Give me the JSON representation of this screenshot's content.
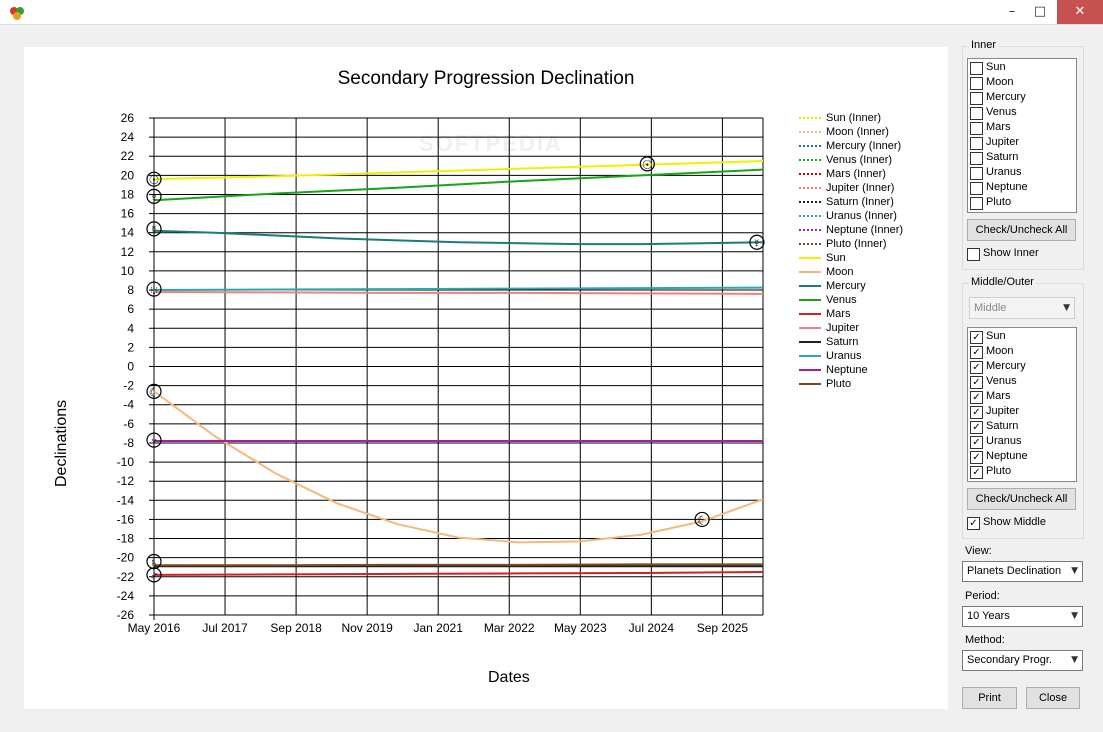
{
  "window": {
    "title": "",
    "minimize": "–",
    "maximize": "□",
    "close": "✕"
  },
  "watermark": "SOFTPEDIA",
  "chart_data": {
    "type": "line",
    "title": "Secondary Progression Declination",
    "xlabel": "Dates",
    "ylabel": "Declinations",
    "ylim": [
      -26,
      26
    ],
    "yticks": [
      "26",
      "24",
      "22",
      "20",
      "18",
      "16",
      "14",
      "12",
      "10",
      "8",
      "6",
      "4",
      "2",
      "0",
      "-2",
      "-4",
      "-6",
      "-8",
      "-10",
      "-12",
      "-14",
      "-16",
      "-18",
      "-20",
      "-22",
      "-24",
      "-26"
    ],
    "xticks": [
      "May 2016",
      "Jul 2017",
      "Sep 2018",
      "Nov 2019",
      "Jan 2021",
      "Mar 2022",
      "May 2023",
      "Jul 2024",
      "Sep 2025"
    ],
    "xrange_years": [
      2016.4,
      2026.4
    ],
    "grid": true,
    "legend_position": "right",
    "series": [
      {
        "name": "Sun (Inner)",
        "color": "#e6e600",
        "dash": true,
        "x": [],
        "y": []
      },
      {
        "name": "Moon (Inner)",
        "color": "#f4b97a",
        "dash": true,
        "x": [],
        "y": []
      },
      {
        "name": "Mercury (Inner)",
        "color": "#1b7a7a",
        "dash": true,
        "x": [],
        "y": []
      },
      {
        "name": "Venus (Inner)",
        "color": "#1aa31a",
        "dash": true,
        "x": [],
        "y": []
      },
      {
        "name": "Mars (Inner)",
        "color": "#c00000",
        "dash": true,
        "x": [],
        "y": []
      },
      {
        "name": "Jupiter (Inner)",
        "color": "#f08080",
        "dash": true,
        "x": [],
        "y": []
      },
      {
        "name": "Saturn (Inner)",
        "color": "#202020",
        "dash": true,
        "x": [],
        "y": []
      },
      {
        "name": "Uranus (Inner)",
        "color": "#2aa8b0",
        "dash": true,
        "x": [],
        "y": []
      },
      {
        "name": "Neptune (Inner)",
        "color": "#a020a0",
        "dash": true,
        "x": [],
        "y": []
      },
      {
        "name": "Pluto (Inner)",
        "color": "#7a4a20",
        "dash": true,
        "x": [],
        "y": []
      },
      {
        "name": "Sun",
        "color": "#f0f000",
        "dash": false,
        "x": [
          2016.4,
          2018.4,
          2020.4,
          2022.4,
          2024.4,
          2026.4
        ],
        "y": [
          19.6,
          19.9,
          20.3,
          20.7,
          21.1,
          21.5
        ]
      },
      {
        "name": "Moon",
        "color": "#f4b97a",
        "dash": false,
        "x": [
          2016.4,
          2017.4,
          2018.4,
          2019.4,
          2020.4,
          2021.4,
          2022.4,
          2023.4,
          2024.4,
          2025.4,
          2026.4
        ],
        "y": [
          -2.6,
          -7.3,
          -11.2,
          -14.3,
          -16.5,
          -17.9,
          -18.4,
          -18.3,
          -17.6,
          -16.2,
          -13.9
        ]
      },
      {
        "name": "Mercury",
        "color": "#1b7a7a",
        "dash": false,
        "x": [
          2016.4,
          2017.4,
          2018.4,
          2019.4,
          2020.4,
          2021.4,
          2022.4,
          2023.4,
          2024.4,
          2025.4,
          2026.4
        ],
        "y": [
          14.2,
          14.0,
          13.7,
          13.4,
          13.2,
          13.0,
          12.9,
          12.8,
          12.8,
          12.9,
          13.0
        ]
      },
      {
        "name": "Venus",
        "color": "#1aa31a",
        "dash": false,
        "x": [
          2016.4,
          2018.4,
          2020.4,
          2022.4,
          2024.4,
          2026.4
        ],
        "y": [
          17.4,
          18.1,
          18.7,
          19.4,
          20.0,
          20.6
        ]
      },
      {
        "name": "Mars",
        "color": "#d42020",
        "dash": false,
        "x": [
          2016.4,
          2018.4,
          2020.4,
          2022.4,
          2024.4,
          2026.4
        ],
        "y": [
          -21.8,
          -21.75,
          -21.7,
          -21.65,
          -21.6,
          -21.5
        ]
      },
      {
        "name": "Jupiter",
        "color": "#f08080",
        "dash": false,
        "x": [
          2016.4,
          2018.4,
          2020.4,
          2022.4,
          2024.4,
          2026.4
        ],
        "y": [
          7.8,
          7.75,
          7.7,
          7.7,
          7.65,
          7.6
        ]
      },
      {
        "name": "Saturn",
        "color": "#202020",
        "dash": false,
        "x": [
          2016.4,
          2018.4,
          2020.4,
          2022.4,
          2024.4,
          2026.4
        ],
        "y": [
          -20.9,
          -20.9,
          -20.9,
          -20.9,
          -20.9,
          -20.9
        ]
      },
      {
        "name": "Uranus",
        "color": "#2aa8b0",
        "dash": false,
        "x": [
          2016.4,
          2018.4,
          2020.4,
          2022.4,
          2024.4,
          2026.4
        ],
        "y": [
          8.0,
          8.05,
          8.1,
          8.15,
          8.2,
          8.25
        ]
      },
      {
        "name": "Neptune",
        "color": "#a020a0",
        "dash": false,
        "x": [
          2016.4,
          2018.4,
          2020.4,
          2022.4,
          2024.4,
          2026.4
        ],
        "y": [
          -7.8,
          -7.8,
          -7.8,
          -7.8,
          -7.8,
          -7.8
        ]
      },
      {
        "name": "Pluto",
        "color": "#7a4a20",
        "dash": false,
        "x": [
          2016.4,
          2018.4,
          2020.4,
          2022.4,
          2024.4,
          2026.4
        ],
        "y": [
          -20.8,
          -20.8,
          -20.75,
          -20.75,
          -20.7,
          -20.7
        ]
      }
    ],
    "markers": [
      {
        "symbol": "☉",
        "name": "sun-marker",
        "x": 2016.4,
        "y": 19.6
      },
      {
        "symbol": "☉",
        "name": "sun-marker-2",
        "x": 2024.5,
        "y": 21.2
      },
      {
        "symbol": "♀",
        "name": "venus-marker",
        "x": 2016.4,
        "y": 17.8
      },
      {
        "symbol": "☿",
        "name": "mercury-marker",
        "x": 2016.4,
        "y": 14.4
      },
      {
        "symbol": "☿",
        "name": "mercury-marker-2",
        "x": 2026.3,
        "y": 13.0
      },
      {
        "symbol": "♅",
        "name": "uranus-marker",
        "x": 2016.4,
        "y": 8.1
      },
      {
        "symbol": "☾",
        "name": "moon-marker",
        "x": 2016.4,
        "y": -2.6
      },
      {
        "symbol": "☾",
        "name": "moon-marker-2",
        "x": 2025.4,
        "y": -16.0
      },
      {
        "symbol": "♆",
        "name": "neptune-marker",
        "x": 2016.4,
        "y": -7.7
      },
      {
        "symbol": "♄",
        "name": "saturn-marker",
        "x": 2016.4,
        "y": -20.4
      },
      {
        "symbol": "♂",
        "name": "mars-marker",
        "x": 2016.4,
        "y": -21.8
      }
    ]
  },
  "panel": {
    "inner_title": "Inner",
    "inner_items": [
      {
        "label": "Sun",
        "checked": false
      },
      {
        "label": "Moon",
        "checked": false
      },
      {
        "label": "Mercury",
        "checked": false
      },
      {
        "label": "Venus",
        "checked": false
      },
      {
        "label": "Mars",
        "checked": false
      },
      {
        "label": "Jupiter",
        "checked": false
      },
      {
        "label": "Saturn",
        "checked": false
      },
      {
        "label": "Uranus",
        "checked": false
      },
      {
        "label": "Neptune",
        "checked": false
      },
      {
        "label": "Pluto",
        "checked": false
      }
    ],
    "inner_check_all": "Check/Uncheck All",
    "show_inner": "Show Inner",
    "show_inner_checked": false,
    "middle_title": "Middle/Outer",
    "middle_combo": "Middle",
    "middle_items": [
      {
        "label": "Sun",
        "checked": true
      },
      {
        "label": "Moon",
        "checked": true
      },
      {
        "label": "Mercury",
        "checked": true
      },
      {
        "label": "Venus",
        "checked": true
      },
      {
        "label": "Mars",
        "checked": true
      },
      {
        "label": "Jupiter",
        "checked": true
      },
      {
        "label": "Saturn",
        "checked": true
      },
      {
        "label": "Uranus",
        "checked": true
      },
      {
        "label": "Neptune",
        "checked": true
      },
      {
        "label": "Pluto",
        "checked": true
      }
    ],
    "middle_check_all": "Check/Uncheck All",
    "show_middle": "Show Middle",
    "show_middle_checked": true,
    "view_label": "View:",
    "view_value": "Planets Declination",
    "period_label": "Period:",
    "period_value": "10 Years",
    "method_label": "Method:",
    "method_value": "Secondary Progr.",
    "print": "Print",
    "close": "Close"
  }
}
